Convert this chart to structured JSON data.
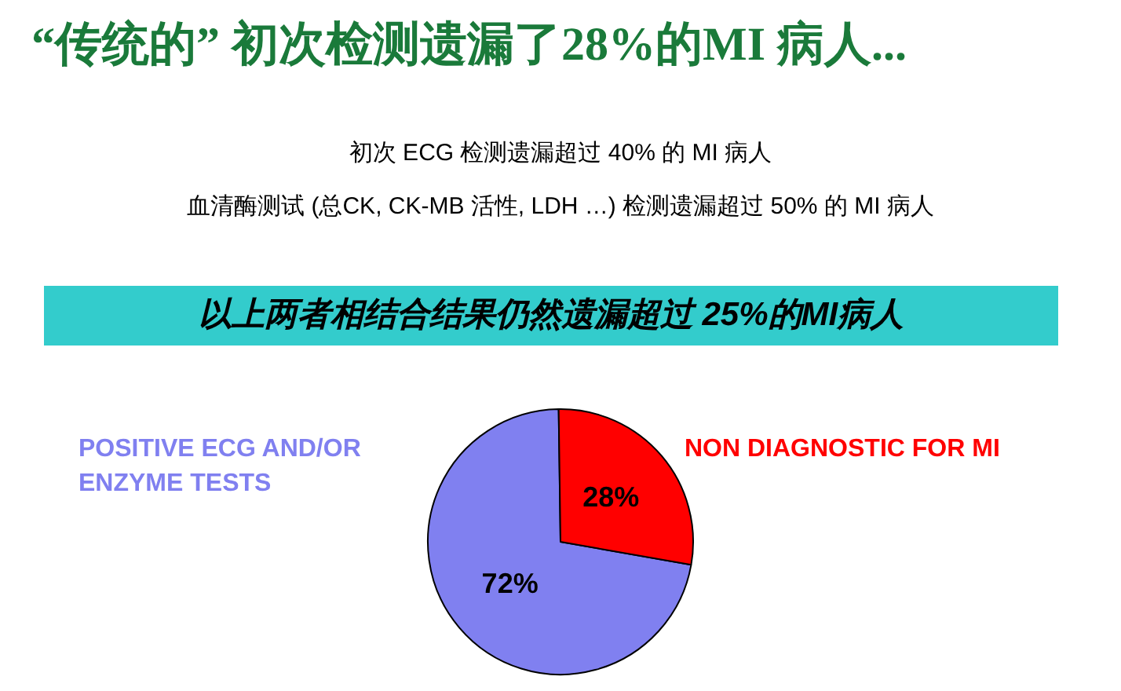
{
  "chart_data": {
    "type": "pie",
    "title": "“传统的” 初次检测遗漏了28%的MI 病人...",
    "subtitle": "初次 ECG 检测遗漏超过 40% 的 MI 病人",
    "annotations": [
      "血清酶测试 (总CK, CK-MB 活性, LDH …) 检测遗漏超过 50% 的 MI 病人",
      "以上两者相结合结果仍然遗漏超过 25%的MI病人"
    ],
    "categories": [
      "POSITIVE ECG AND/OR ENZYME TESTS",
      "NON DIAGNOSTIC FOR MI"
    ],
    "values": [
      72,
      28
    ],
    "colors": [
      "#8080f0",
      "#ff0000"
    ],
    "value_labels": [
      "72%",
      "28%"
    ],
    "legend": false
  }
}
